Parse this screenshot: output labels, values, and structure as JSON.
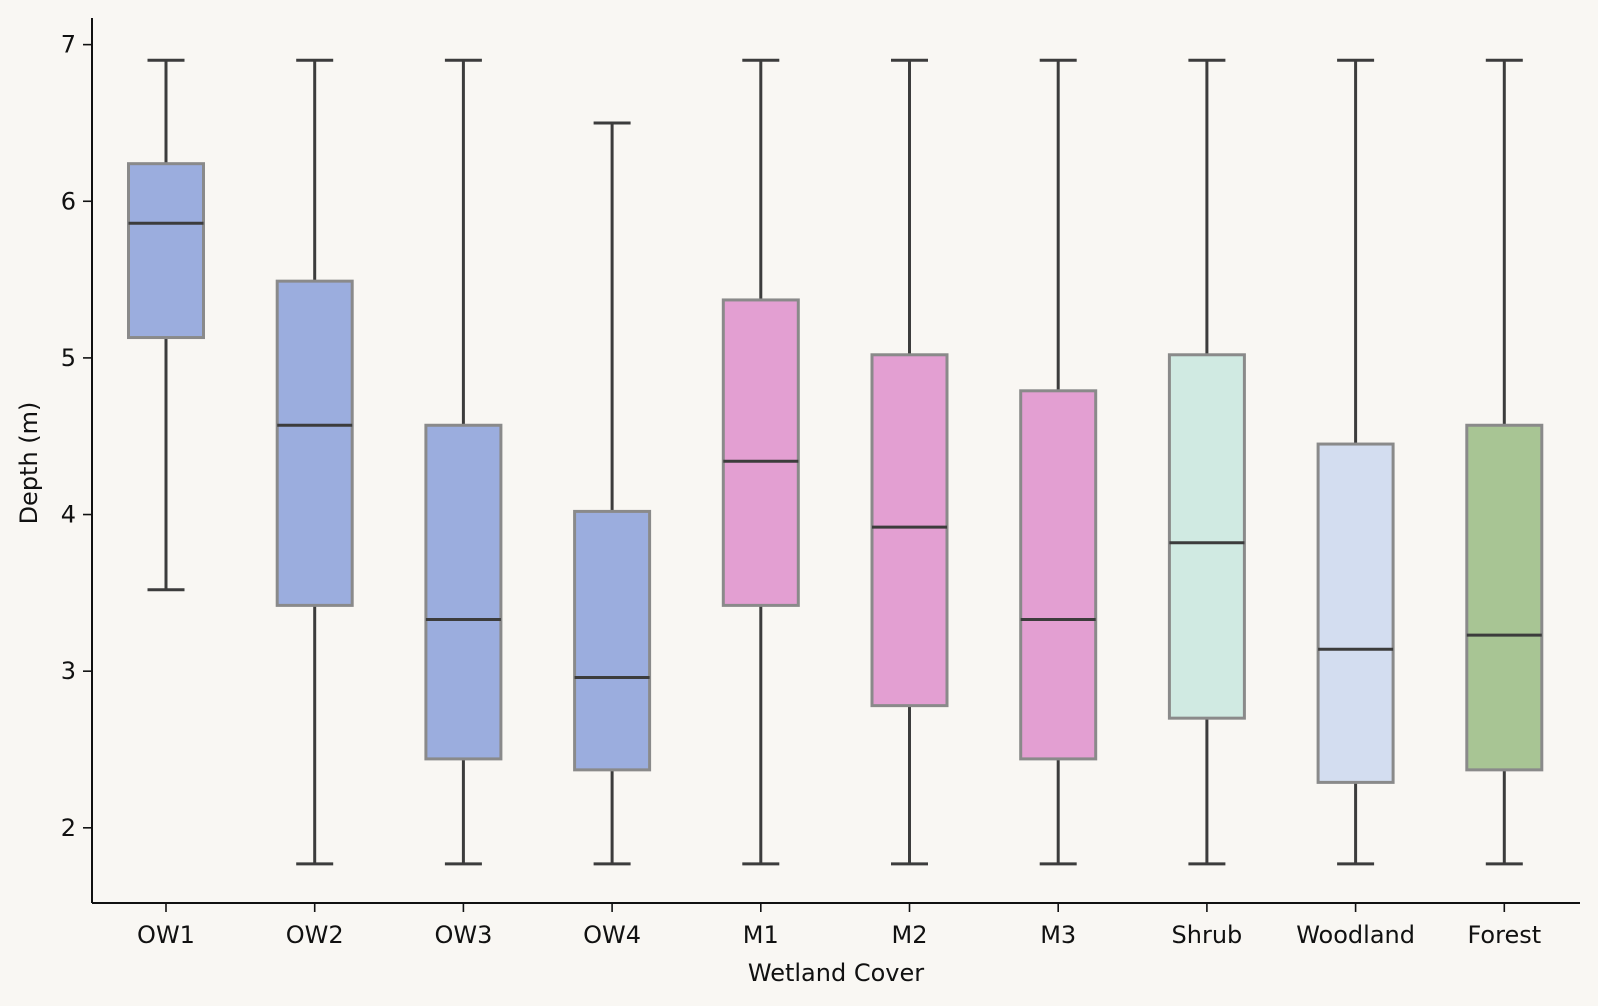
{
  "chart_data": {
    "type": "box",
    "xlabel": "Wetland Cover",
    "ylabel": "Depth (m)",
    "ylim": [
      1.52,
      7.17
    ],
    "yticks": [
      2,
      3,
      4,
      5,
      6,
      7
    ],
    "grid": false,
    "categories": [
      "OW1",
      "OW2",
      "OW3",
      "OW4",
      "M1",
      "M2",
      "M3",
      "Shrub",
      "Woodland",
      "Forest"
    ],
    "boxes": [
      {
        "label": "OW1",
        "whisker_low": 3.52,
        "q1": 5.13,
        "median": 5.86,
        "q3": 6.24,
        "whisker_high": 6.9,
        "color": "#9badde"
      },
      {
        "label": "OW2",
        "whisker_low": 1.77,
        "q1": 3.42,
        "median": 4.57,
        "q3": 5.49,
        "whisker_high": 6.9,
        "color": "#9badde"
      },
      {
        "label": "OW3",
        "whisker_low": 1.77,
        "q1": 2.44,
        "median": 3.33,
        "q3": 4.57,
        "whisker_high": 6.9,
        "color": "#9badde"
      },
      {
        "label": "OW4",
        "whisker_low": 1.77,
        "q1": 2.37,
        "median": 2.96,
        "q3": 4.02,
        "whisker_high": 6.5,
        "color": "#9badde"
      },
      {
        "label": "M1",
        "whisker_low": 1.77,
        "q1": 3.42,
        "median": 4.34,
        "q3": 5.37,
        "whisker_high": 6.9,
        "color": "#e39fd2"
      },
      {
        "label": "M2",
        "whisker_low": 1.77,
        "q1": 2.78,
        "median": 3.92,
        "q3": 5.02,
        "whisker_high": 6.9,
        "color": "#e39fd2"
      },
      {
        "label": "M3",
        "whisker_low": 1.77,
        "q1": 2.44,
        "median": 3.33,
        "q3": 4.79,
        "whisker_high": 6.9,
        "color": "#e39fd2"
      },
      {
        "label": "Shrub",
        "whisker_low": 1.77,
        "q1": 2.7,
        "median": 3.82,
        "q3": 5.02,
        "whisker_high": 6.9,
        "color": "#d0eae2"
      },
      {
        "label": "Woodland",
        "whisker_low": 1.77,
        "q1": 2.29,
        "median": 3.14,
        "q3": 4.45,
        "whisker_high": 6.9,
        "color": "#d3ddf0"
      },
      {
        "label": "Forest",
        "whisker_low": 1.77,
        "q1": 2.37,
        "median": 3.23,
        "q3": 4.57,
        "whisker_high": 6.9,
        "color": "#a8c594"
      }
    ]
  }
}
